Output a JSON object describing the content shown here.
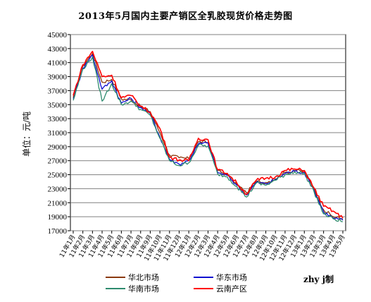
{
  "chart_data": {
    "type": "line",
    "title": "2013年5月国内主要产销区全乳胶现货价格走势图",
    "ylabel": "单位：元/吨",
    "ylim": [
      17000,
      45000
    ],
    "yticks": [
      17000,
      19000,
      21000,
      23000,
      25000,
      27000,
      29000,
      31000,
      33000,
      35000,
      37000,
      39000,
      41000,
      43000,
      45000
    ],
    "categories": [
      "11年1月",
      "11年2月",
      "11年3月",
      "11年4月",
      "11年5月",
      "11年6月",
      "11年7月",
      "11年8月",
      "11年9月",
      "11年10月",
      "11年11月",
      "11年12月",
      "12年1月",
      "12年2月",
      "12年3月",
      "12年4月",
      "12年5月",
      "12年6月",
      "12年7月",
      "12年8月",
      "12年9月",
      "12年10月",
      "12年11月",
      "12年12月",
      "13年1月",
      "13年2月",
      "13年3月",
      "13年4月",
      "13年5月"
    ],
    "grid": true,
    "legend_position": "bottom",
    "series": [
      {
        "name": "华北市场",
        "color": "#8B3A0F",
        "values": [
          36000,
          40500,
          42300,
          38200,
          38600,
          35800,
          35700,
          34700,
          34000,
          31000,
          27800,
          27400,
          27300,
          29700,
          29600,
          25600,
          25000,
          23600,
          22400,
          24000,
          23900,
          24400,
          25300,
          25600,
          25500,
          23000,
          20000,
          19000,
          18700
        ]
      },
      {
        "name": "华东市场",
        "color": "#1010D0",
        "values": [
          35800,
          40200,
          42100,
          37200,
          38400,
          35200,
          35900,
          34600,
          33700,
          30400,
          27200,
          26500,
          27000,
          29400,
          29500,
          25300,
          24900,
          23500,
          22100,
          23900,
          23700,
          24300,
          25200,
          25500,
          25300,
          22800,
          19700,
          18800,
          18500
        ]
      },
      {
        "name": "华南市场",
        "color": "#2E8B6E",
        "values": [
          35600,
          40100,
          41800,
          35500,
          38000,
          35000,
          35500,
          34300,
          33500,
          30200,
          27000,
          26300,
          26700,
          29200,
          29100,
          25100,
          24700,
          23300,
          21800,
          23800,
          23500,
          24200,
          25000,
          25400,
          25200,
          22600,
          19400,
          18700,
          18300
        ]
      },
      {
        "name": "云南产区",
        "color": "#FF0000",
        "values": [
          36300,
          40700,
          42600,
          39000,
          39200,
          36000,
          36300,
          34800,
          33900,
          31600,
          27500,
          27100,
          27000,
          30200,
          30000,
          25700,
          25200,
          23800,
          22200,
          24200,
          24500,
          24700,
          25600,
          25800,
          25600,
          23100,
          20500,
          19800,
          18800
        ]
      }
    ],
    "credit": "zhy j制"
  }
}
